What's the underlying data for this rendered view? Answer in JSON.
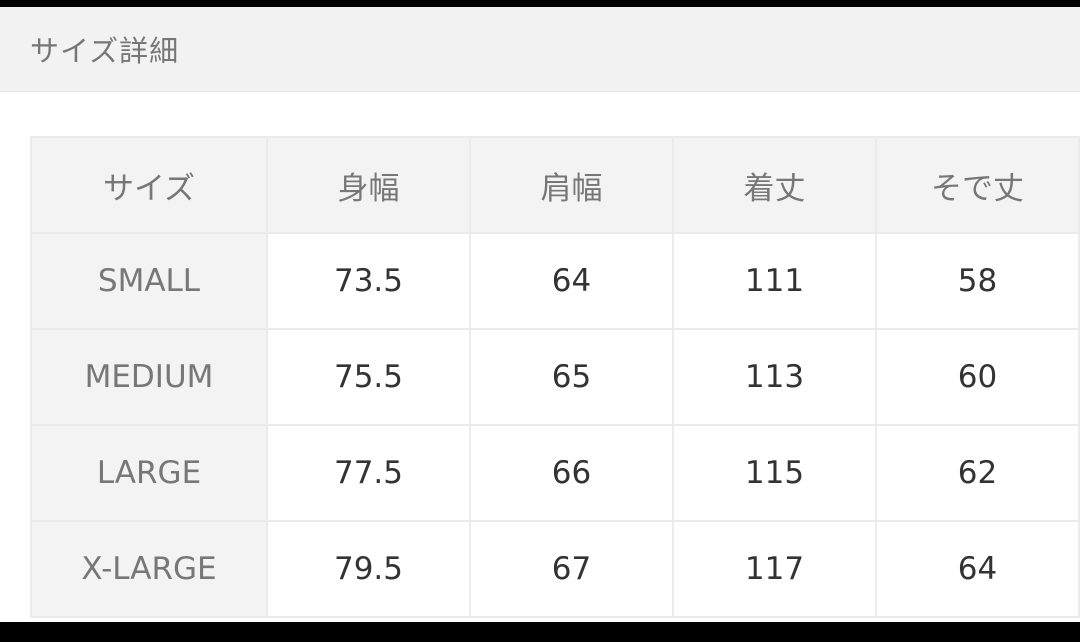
{
  "section_title": "サイズ詳細",
  "table": {
    "headers": [
      "サイズ",
      "身幅",
      "肩幅",
      "着丈",
      "そで丈"
    ],
    "rows": [
      {
        "size": "SMALL",
        "values": [
          "73.5",
          "64",
          "111",
          "58"
        ]
      },
      {
        "size": "MEDIUM",
        "values": [
          "75.5",
          "65",
          "113",
          "60"
        ]
      },
      {
        "size": "LARGE",
        "values": [
          "77.5",
          "66",
          "115",
          "62"
        ]
      },
      {
        "size": "X-LARGE",
        "values": [
          "79.5",
          "67",
          "117",
          "64"
        ]
      }
    ]
  }
}
